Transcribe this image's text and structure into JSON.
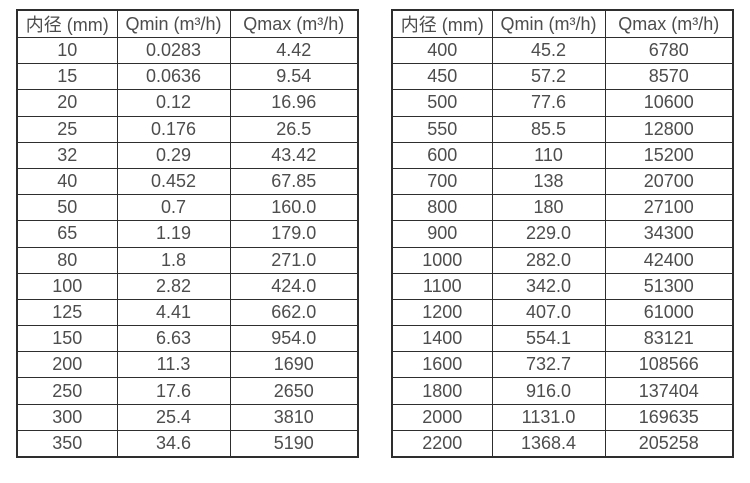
{
  "page": {
    "background_color": "#ffffff",
    "border_color": "#2e2e2e",
    "text_color": "#4d4d4d"
  },
  "chart_data": [
    {
      "type": "table",
      "title": "",
      "columns": [
        "内径 (mm)",
        "Qmin (m³/h)",
        "Qmax (m³/h)"
      ],
      "rows": [
        [
          "10",
          "0.0283",
          "4.42"
        ],
        [
          "15",
          "0.0636",
          "9.54"
        ],
        [
          "20",
          "0.12",
          "16.96"
        ],
        [
          "25",
          "0.176",
          "26.5"
        ],
        [
          "32",
          "0.29",
          "43.42"
        ],
        [
          "40",
          "0.452",
          "67.85"
        ],
        [
          "50",
          "0.7",
          "160.0"
        ],
        [
          "65",
          "1.19",
          "179.0"
        ],
        [
          "80",
          "1.8",
          "271.0"
        ],
        [
          "100",
          "2.82",
          "424.0"
        ],
        [
          "125",
          "4.41",
          "662.0"
        ],
        [
          "150",
          "6.63",
          "954.0"
        ],
        [
          "200",
          "11.3",
          "1690"
        ],
        [
          "250",
          "17.6",
          "2650"
        ],
        [
          "300",
          "25.4",
          "3810"
        ],
        [
          "350",
          "34.6",
          "5190"
        ]
      ]
    },
    {
      "type": "table",
      "title": "",
      "columns": [
        "内径 (mm)",
        "Qmin (m³/h)",
        "Qmax (m³/h)"
      ],
      "rows": [
        [
          "400",
          "45.2",
          "6780"
        ],
        [
          "450",
          "57.2",
          "8570"
        ],
        [
          "500",
          "77.6",
          "10600"
        ],
        [
          "550",
          "85.5",
          "12800"
        ],
        [
          "600",
          "110",
          "15200"
        ],
        [
          "700",
          "138",
          "20700"
        ],
        [
          "800",
          "180",
          "27100"
        ],
        [
          "900",
          "229.0",
          "34300"
        ],
        [
          "1000",
          "282.0",
          "42400"
        ],
        [
          "1100",
          "342.0",
          "51300"
        ],
        [
          "1200",
          "407.0",
          "61000"
        ],
        [
          "1400",
          "554.1",
          "83121"
        ],
        [
          "1600",
          "732.7",
          "108566"
        ],
        [
          "1800",
          "916.0",
          "137404"
        ],
        [
          "2000",
          "1131.0",
          "169635"
        ],
        [
          "2200",
          "1368.4",
          "205258"
        ]
      ]
    }
  ]
}
